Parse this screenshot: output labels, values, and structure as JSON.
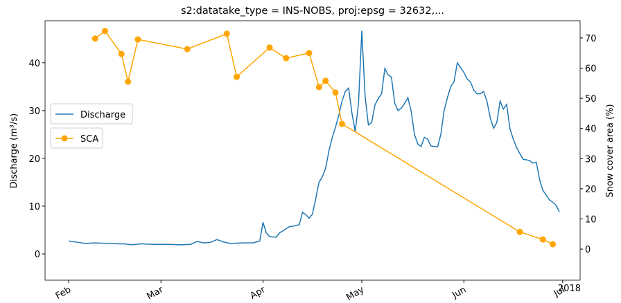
{
  "chart_data": {
    "type": "line",
    "title": "s2:datatake_type = INS-NOBS, proj:epsg = 32632,...",
    "ylabel": "Discharge (m³/s)",
    "y2label": "Snow cover area (%)",
    "x_offset_label": "2018",
    "xlim": [
      17555.8,
      17718.3
    ],
    "xticks": [
      {
        "value": 17563,
        "label": "Feb"
      },
      {
        "value": 17591,
        "label": "Mar"
      },
      {
        "value": 17622,
        "label": "Apr"
      },
      {
        "value": 17652,
        "label": "May"
      },
      {
        "value": 17683,
        "label": "Jun"
      },
      {
        "value": 17713,
        "label": "Jul"
      }
    ],
    "ylim": [
      -5.5,
      48.8
    ],
    "yticks": [
      0,
      10,
      20,
      30,
      40
    ],
    "y2lim": [
      -10.3,
      75.7
    ],
    "y2ticks": [
      0,
      10,
      20,
      30,
      40,
      50,
      60,
      70
    ],
    "series": [
      {
        "name": "Discharge",
        "color": "#1f77b4",
        "marker": false,
        "x": [
          17563,
          17566,
          17568,
          17571,
          17575,
          17578,
          17580,
          17582,
          17585,
          17589,
          17593,
          17597,
          17600,
          17602,
          17604,
          17606,
          17608,
          17610,
          17612,
          17616,
          17619,
          17621,
          17622,
          17623,
          17624,
          17626,
          17627,
          17628,
          17630,
          17631,
          17633,
          17634,
          17635,
          17636,
          17637,
          17638,
          17639,
          17640,
          17641,
          17642,
          17643,
          17644,
          17645,
          17646,
          17647,
          17648,
          17649,
          17650,
          17651,
          17652,
          17653,
          17654,
          17655,
          17656,
          17657,
          17658,
          17659,
          17660,
          17661,
          17662,
          17663,
          17664,
          17665,
          17666,
          17667,
          17668,
          17669,
          17670,
          17671,
          17672,
          17673,
          17675,
          17676,
          17677,
          17678,
          17679,
          17680,
          17681,
          17682,
          17683,
          17684,
          17685,
          17686,
          17687,
          17688,
          17689,
          17690,
          17691,
          17692,
          17693,
          17694,
          17695,
          17696,
          17697,
          17698,
          17699,
          17700,
          17701,
          17702,
          17703,
          17704,
          17705,
          17706,
          17707,
          17708,
          17709,
          17710,
          17711,
          17712
        ],
        "values": [
          2.7,
          2.4,
          2.2,
          2.3,
          2.2,
          2.1,
          2.1,
          1.9,
          2.1,
          2.0,
          2.0,
          1.9,
          2.0,
          2.6,
          2.3,
          2.4,
          3.0,
          2.5,
          2.2,
          2.3,
          2.3,
          2.7,
          6.6,
          4.4,
          3.6,
          3.5,
          4.4,
          4.8,
          5.7,
          5.8,
          6.1,
          8.7,
          8.2,
          7.5,
          8.3,
          11.5,
          15.0,
          16.1,
          17.9,
          21.5,
          24.3,
          26.5,
          29.0,
          32.0,
          34.0,
          34.7,
          29.5,
          25.6,
          31.5,
          46.7,
          33.0,
          27.0,
          27.5,
          31.2,
          32.5,
          33.5,
          38.8,
          37.5,
          37.0,
          31.5,
          30.0,
          30.5,
          31.5,
          32.7,
          29.8,
          25.0,
          23.0,
          22.5,
          24.4,
          24.0,
          22.6,
          22.4,
          25.0,
          30.0,
          32.7,
          35.0,
          36.0,
          40.0,
          39.0,
          38.0,
          36.6,
          36.0,
          34.3,
          33.5,
          33.5,
          34.0,
          32.0,
          28.5,
          26.3,
          27.5,
          32.0,
          30.3,
          31.3,
          26.2,
          24.0,
          22.3,
          21.0,
          19.8,
          19.7,
          19.5,
          19.0,
          19.2,
          15.5,
          13.3,
          12.3,
          11.3,
          10.8,
          10.2,
          8.8
        ]
      },
      {
        "name": "SCA",
        "color": "#ffa500",
        "marker": true,
        "axis": "y2",
        "x": [
          17571,
          17574,
          17579,
          17581,
          17584,
          17599,
          17611,
          17614,
          17624,
          17629,
          17636,
          17639,
          17641,
          17644,
          17646,
          17700,
          17707,
          17710
        ],
        "values": [
          69.8,
          72.3,
          64.7,
          55.5,
          69.5,
          66.3,
          71.4,
          57.1,
          66.8,
          63.3,
          65.0,
          53.7,
          55.8,
          51.9,
          41.5,
          5.7,
          3.2,
          1.6
        ]
      }
    ]
  }
}
